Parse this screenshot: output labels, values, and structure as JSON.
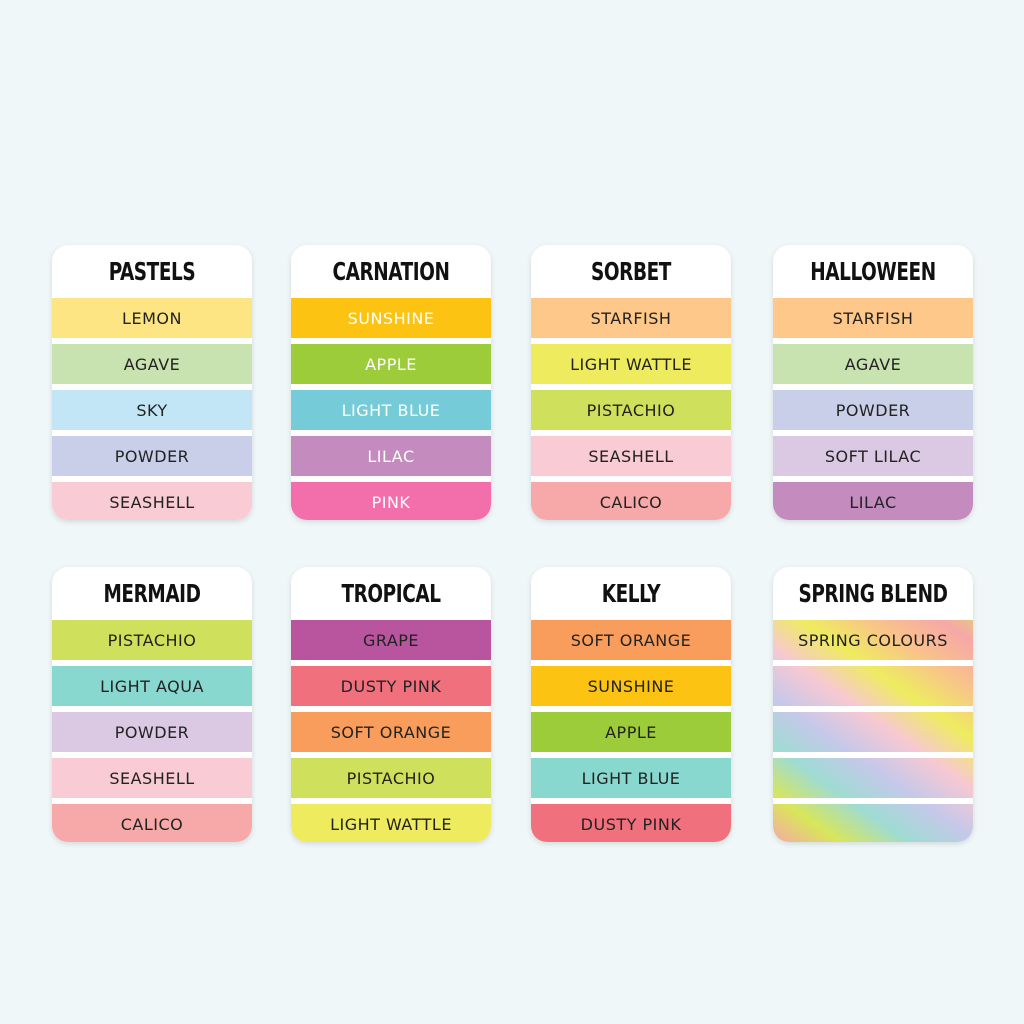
{
  "cards": [
    {
      "title": "Pastels",
      "bands": [
        {
          "label": "LEMON",
          "color": "#fde583",
          "text": "#222"
        },
        {
          "label": "AGAVE",
          "color": "#c8e2b0",
          "text": "#222"
        },
        {
          "label": "SKY",
          "color": "#c3e6f7",
          "text": "#222"
        },
        {
          "label": "POWDER",
          "color": "#c9cfe9",
          "text": "#222"
        },
        {
          "label": "SEASHELL",
          "color": "#f9cbd4",
          "text": "#222"
        }
      ]
    },
    {
      "title": "Carnation",
      "bands": [
        {
          "label": "SUNSHINE",
          "color": "#fcc313",
          "text": "#fff"
        },
        {
          "label": "APPLE",
          "color": "#9dcc3a",
          "text": "#fff"
        },
        {
          "label": "LIGHT BLUE",
          "color": "#75ccd8",
          "text": "#fff"
        },
        {
          "label": "LILAC",
          "color": "#c38bbe",
          "text": "#fff"
        },
        {
          "label": "PINK",
          "color": "#f26fab",
          "text": "#fff"
        }
      ]
    },
    {
      "title": "Sorbet",
      "bands": [
        {
          "label": "STARFISH",
          "color": "#fdc88a",
          "text": "#222"
        },
        {
          "label": "LIGHT WATTLE",
          "color": "#eeec5e",
          "text": "#222"
        },
        {
          "label": "PISTACHIO",
          "color": "#cfe15c",
          "text": "#222"
        },
        {
          "label": "SEASHELL",
          "color": "#f9cbd4",
          "text": "#222"
        },
        {
          "label": "CALICO",
          "color": "#f7a8a9",
          "text": "#222"
        }
      ]
    },
    {
      "title": "Halloween",
      "bands": [
        {
          "label": "STARFISH",
          "color": "#fdc88a",
          "text": "#222"
        },
        {
          "label": "AGAVE",
          "color": "#c8e2b0",
          "text": "#222"
        },
        {
          "label": "POWDER",
          "color": "#c9cfe9",
          "text": "#222"
        },
        {
          "label": "SOFT LILAC",
          "color": "#dbc8e2",
          "text": "#222"
        },
        {
          "label": "LILAC",
          "color": "#c38bbe",
          "text": "#222"
        }
      ]
    },
    {
      "title": "Mermaid",
      "bands": [
        {
          "label": "PISTACHIO",
          "color": "#cfe15c",
          "text": "#222"
        },
        {
          "label": "LIGHT AQUA",
          "color": "#88d8cf",
          "text": "#222"
        },
        {
          "label": "POWDER",
          "color": "#dbc8e2",
          "text": "#222"
        },
        {
          "label": "SEASHELL",
          "color": "#f9cbd4",
          "text": "#222"
        },
        {
          "label": "CALICO",
          "color": "#f7a8a9",
          "text": "#222"
        }
      ]
    },
    {
      "title": "Tropical",
      "bands": [
        {
          "label": "GRAPE",
          "color": "#b9559f",
          "text": "#222"
        },
        {
          "label": "DUSTY PINK",
          "color": "#f0707e",
          "text": "#222"
        },
        {
          "label": "SOFT ORANGE",
          "color": "#f99d5c",
          "text": "#222"
        },
        {
          "label": "PISTACHIO",
          "color": "#cfe15c",
          "text": "#222"
        },
        {
          "label": "LIGHT WATTLE",
          "color": "#eeec5e",
          "text": "#222"
        }
      ]
    },
    {
      "title": "Kelly",
      "bands": [
        {
          "label": "SOFT ORANGE",
          "color": "#f99d5c",
          "text": "#222"
        },
        {
          "label": "SUNSHINE",
          "color": "#fcc313",
          "text": "#222"
        },
        {
          "label": "APPLE",
          "color": "#9dcc3a",
          "text": "#222"
        },
        {
          "label": "LIGHT BLUE",
          "color": "#88d8cf",
          "text": "#222"
        },
        {
          "label": "DUSTY PINK",
          "color": "#f0707e",
          "text": "#222"
        }
      ]
    },
    {
      "title": "Spring Blend",
      "bands": [
        {
          "label": "SPRING COLOURS"
        },
        {
          "label": ""
        },
        {
          "label": ""
        },
        {
          "label": ""
        },
        {
          "label": ""
        }
      ]
    }
  ]
}
